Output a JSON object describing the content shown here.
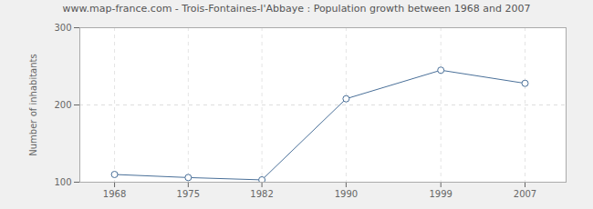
{
  "chart_data": {
    "type": "line",
    "title": "www.map-france.com - Trois-Fontaines-l'Abbaye : Population growth between 1968 and 2007",
    "y_label": "Number of inhabitants",
    "x": [
      1968,
      1975,
      1982,
      1990,
      1999,
      2007
    ],
    "values": [
      110,
      106,
      103,
      208,
      245,
      228
    ],
    "color": "#4a7099",
    "marker": "circle",
    "line_style": "solid",
    "xlim": [
      1964.7,
      2010.9
    ],
    "xticks": [
      1968,
      1975,
      1982,
      1990,
      1999,
      2007
    ],
    "ylim": [
      100,
      300
    ],
    "yticks": [
      100,
      200,
      300
    ],
    "grid": true
  }
}
